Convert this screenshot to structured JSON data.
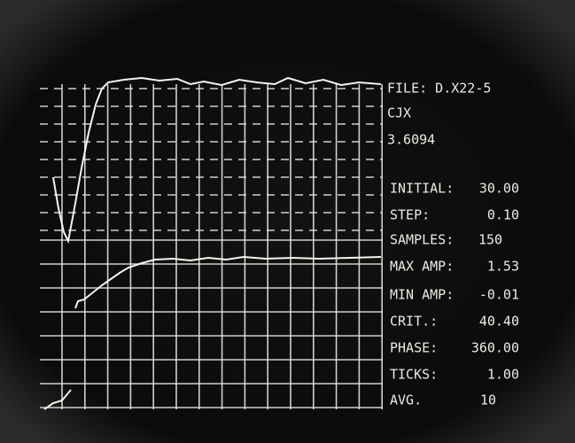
{
  "header": {
    "file": "FILE: D.X22-5",
    "line2": "CJX",
    "line3": "3.6094"
  },
  "params": [
    {
      "label": "INITIAL:",
      "value": "30.00"
    },
    {
      "label": "STEP:",
      "value": "0.10"
    },
    {
      "label": "SAMPLES:",
      "value": "150"
    },
    {
      "label": "MAX AMP:",
      "value": "1.53"
    },
    {
      "label": "MIN AMP:",
      "value": "-0.01"
    },
    {
      "label": "CRIT.:",
      "value": "40.40"
    },
    {
      "label": "PHASE:",
      "value": "360.00"
    },
    {
      "label": "TICKS:",
      "value": "1.00"
    },
    {
      "label": "AVG.",
      "value": "10"
    }
  ]
}
